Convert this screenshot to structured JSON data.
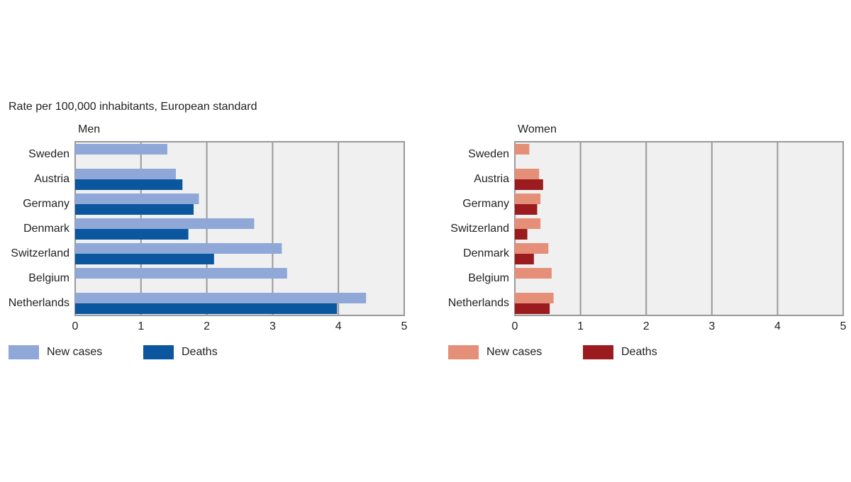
{
  "header": {
    "subtitle": "Rate per 100,000 inhabitants, European standard"
  },
  "chart_data": [
    {
      "type": "bar",
      "orientation": "horizontal",
      "title": "Men",
      "categories": [
        "Sweden",
        "Austria",
        "Germany",
        "Denmark",
        "Switzerland",
        "Belgium",
        "Netherlands"
      ],
      "series": [
        {
          "name": "New cases",
          "color": "#8fa8d8",
          "values": [
            1.4,
            1.53,
            1.88,
            2.72,
            3.14,
            3.22,
            4.42
          ]
        },
        {
          "name": "Deaths",
          "color": "#0a57a0",
          "values": [
            null,
            1.63,
            1.8,
            1.72,
            2.11,
            null,
            3.98
          ]
        }
      ],
      "xlim": [
        0,
        5
      ],
      "xticks": [
        0,
        1,
        2,
        3,
        4,
        5
      ],
      "grid": true
    },
    {
      "type": "bar",
      "orientation": "horizontal",
      "title": "Women",
      "categories": [
        "Sweden",
        "Austria",
        "Germany",
        "Switzerland",
        "Denmark",
        "Belgium",
        "Netherlands"
      ],
      "series": [
        {
          "name": "New cases",
          "color": "#e58f78",
          "values": [
            0.22,
            0.37,
            0.39,
            0.39,
            0.51,
            0.56,
            0.59
          ]
        },
        {
          "name": "Deaths",
          "color": "#9b1b1f",
          "values": [
            null,
            0.43,
            0.34,
            0.19,
            0.29,
            null,
            0.53
          ]
        }
      ],
      "xlim": [
        0,
        5
      ],
      "xticks": [
        0,
        1,
        2,
        3,
        4,
        5
      ],
      "grid": true
    }
  ]
}
